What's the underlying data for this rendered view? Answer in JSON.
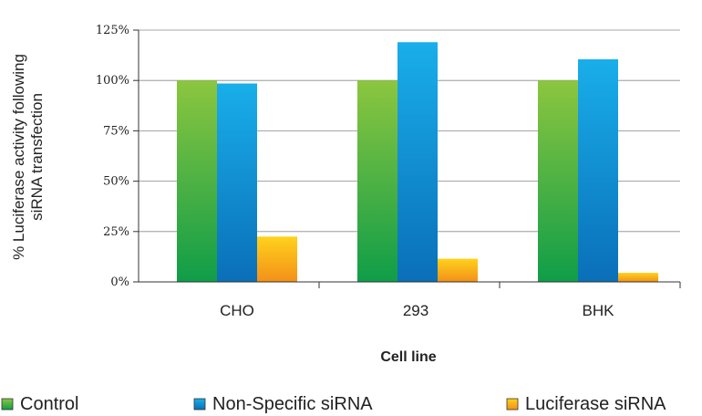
{
  "chart_data": {
    "type": "bar",
    "categories": [
      "CHO",
      "293",
      "BHK"
    ],
    "series": [
      {
        "name": "Control",
        "values": [
          100,
          100,
          100
        ],
        "color": "#3cb043"
      },
      {
        "name": "Non-Specific siRNA",
        "values": [
          98.5,
          119,
          110.5
        ],
        "color": "#1a8fd6"
      },
      {
        "name": "Luciferase siRNA",
        "values": [
          22.5,
          11.5,
          4.5
        ],
        "color": "#f6a21a"
      }
    ],
    "title": "",
    "xlabel": "Cell line",
    "ylabel_lines": [
      "% Luciferase activity following",
      "siRNA transfection"
    ],
    "yticks": [
      0,
      25,
      50,
      75,
      100,
      125
    ],
    "ytick_labels": [
      "0%",
      "25%",
      "50%",
      "75%",
      "100%",
      "125%"
    ],
    "ylim": [
      0,
      125
    ],
    "grid": true,
    "legend_position": "bottom"
  }
}
